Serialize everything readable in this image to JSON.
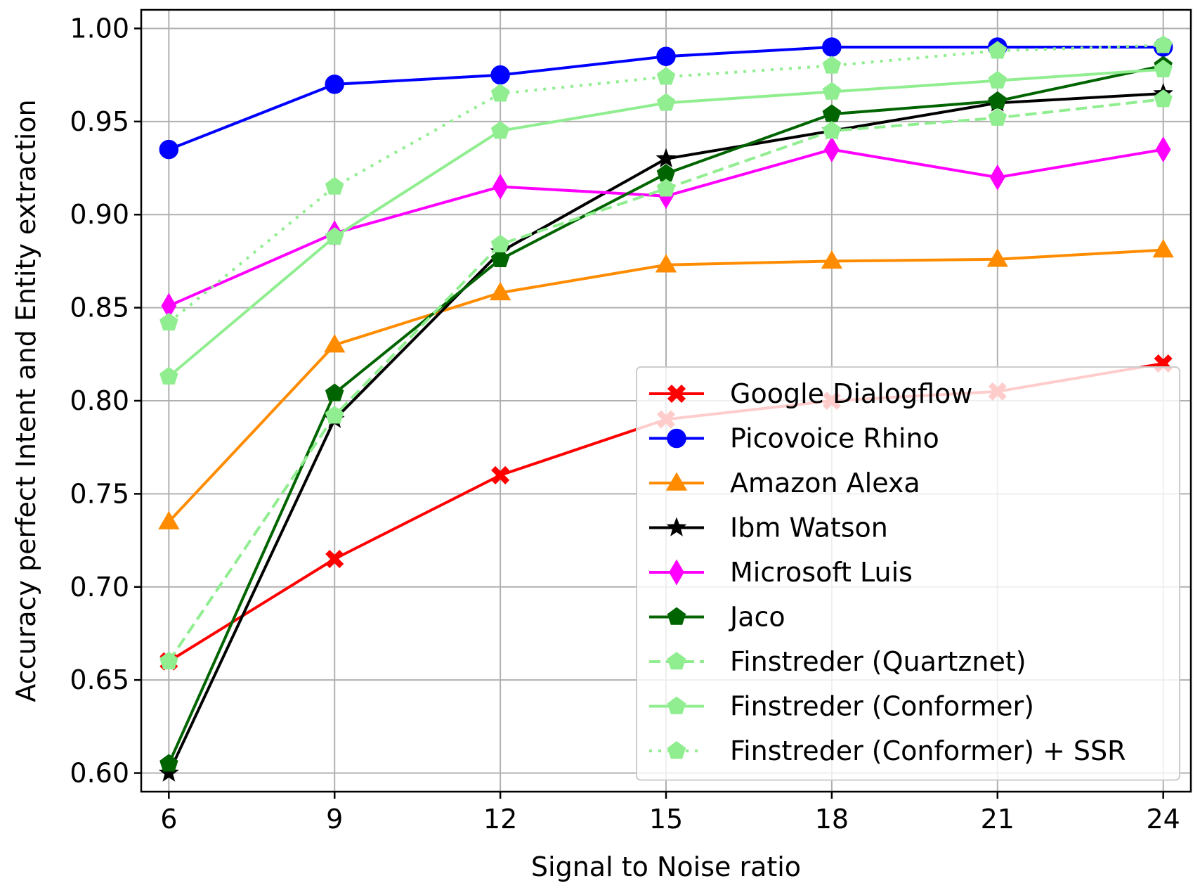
{
  "chart_data": {
    "type": "line",
    "title": "",
    "xlabel": "Signal to Noise ratio",
    "ylabel": "Accuracy perfect Intent and Entity extraction",
    "x": [
      6,
      9,
      12,
      15,
      18,
      21,
      24
    ],
    "xticks": [
      "6",
      "9",
      "12",
      "15",
      "18",
      "21",
      "24"
    ],
    "yticks": [
      "0.60",
      "0.65",
      "0.70",
      "0.75",
      "0.80",
      "0.85",
      "0.90",
      "0.95",
      "1.00"
    ],
    "xlim": [
      5.5,
      24.5
    ],
    "ylim": [
      0.59,
      1.01
    ],
    "grid": true,
    "legend_position": "lower-right",
    "series": [
      {
        "name": "Google Dialogflow",
        "color": "#ff0000",
        "marker": "X",
        "dash": "solid",
        "values": [
          0.66,
          0.715,
          0.76,
          0.79,
          0.8,
          0.805,
          0.82
        ]
      },
      {
        "name": "Picovoice Rhino",
        "color": "#0000ff",
        "marker": "circle",
        "dash": "solid",
        "values": [
          0.935,
          0.97,
          0.975,
          0.985,
          0.99,
          0.99,
          0.99
        ]
      },
      {
        "name": "Amazon Alexa",
        "color": "#ff8c00",
        "marker": "triangle",
        "dash": "solid",
        "values": [
          0.735,
          0.83,
          0.858,
          0.873,
          0.875,
          0.876,
          0.881
        ]
      },
      {
        "name": "Ibm Watson",
        "color": "#000000",
        "marker": "star",
        "dash": "solid",
        "values": [
          0.6,
          0.79,
          0.88,
          0.93,
          0.945,
          0.96,
          0.965
        ]
      },
      {
        "name": "Microsoft Luis",
        "color": "#ff00ff",
        "marker": "thin-diamond",
        "dash": "solid",
        "values": [
          0.851,
          0.89,
          0.915,
          0.91,
          0.935,
          0.92,
          0.935
        ]
      },
      {
        "name": "Jaco",
        "color": "#006400",
        "marker": "pentagon",
        "dash": "solid",
        "values": [
          0.605,
          0.804,
          0.876,
          0.922,
          0.954,
          0.961,
          0.98
        ]
      },
      {
        "name": "Finstreder (Quartznet)",
        "color": "#90ee90",
        "marker": "pentagon",
        "dash": "dashed",
        "values": [
          0.66,
          0.792,
          0.884,
          0.914,
          0.945,
          0.952,
          0.962
        ]
      },
      {
        "name": "Finstreder (Conformer)",
        "color": "#90ee90",
        "marker": "pentagon",
        "dash": "solid",
        "values": [
          0.813,
          0.888,
          0.945,
          0.96,
          0.966,
          0.972,
          0.978
        ]
      },
      {
        "name": "Finstreder (Conformer) + SSR",
        "color": "#90ee90",
        "marker": "pentagon",
        "dash": "dotted",
        "values": [
          0.842,
          0.915,
          0.965,
          0.974,
          0.98,
          0.988,
          0.991
        ]
      }
    ]
  }
}
